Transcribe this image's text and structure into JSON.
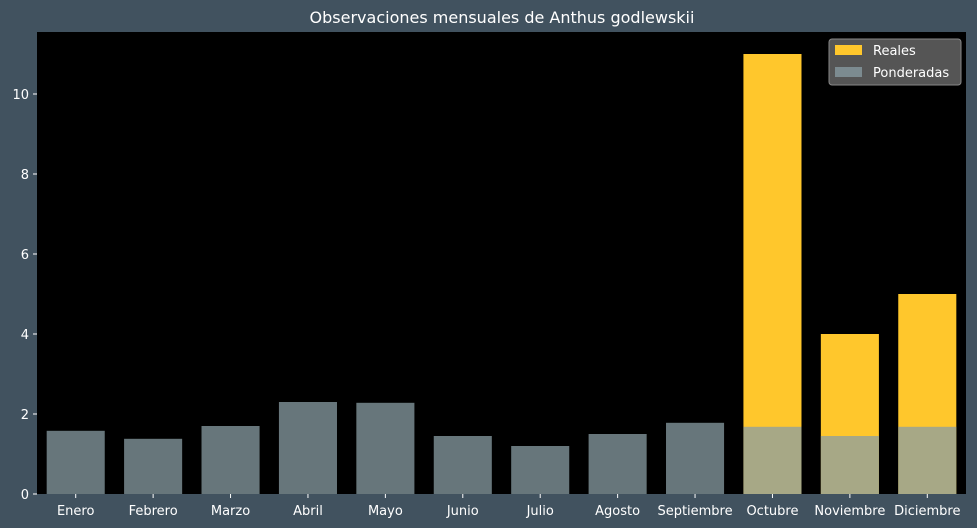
{
  "chart_data": {
    "type": "bar",
    "title": "Observaciones mensuales de Anthus godlewskii",
    "xlabel": "",
    "ylabel": "",
    "categories": [
      "Enero",
      "Febrero",
      "Marzo",
      "Abril",
      "Mayo",
      "Junio",
      "Julio",
      "Agosto",
      "Septiembre",
      "Octubre",
      "Noviembre",
      "Diciembre"
    ],
    "series": [
      {
        "name": "Reales",
        "color": "#ffc72c",
        "values": [
          0,
          0,
          0,
          0,
          0,
          0,
          0,
          0,
          0,
          11,
          4,
          5
        ]
      },
      {
        "name": "Ponderadas",
        "color": "#8a9ea4",
        "values": [
          1.58,
          1.38,
          1.7,
          2.3,
          2.28,
          1.45,
          1.2,
          1.5,
          1.78,
          1.68,
          1.45,
          1.68
        ]
      }
    ],
    "ylim": [
      0,
      11.55
    ],
    "yticks": [
      0,
      2,
      4,
      6,
      8,
      10
    ],
    "grid": false,
    "legend_position": "top-right",
    "colors": {
      "background": "#41525f",
      "plot_background": "#000000",
      "text": "#ffffff"
    }
  }
}
